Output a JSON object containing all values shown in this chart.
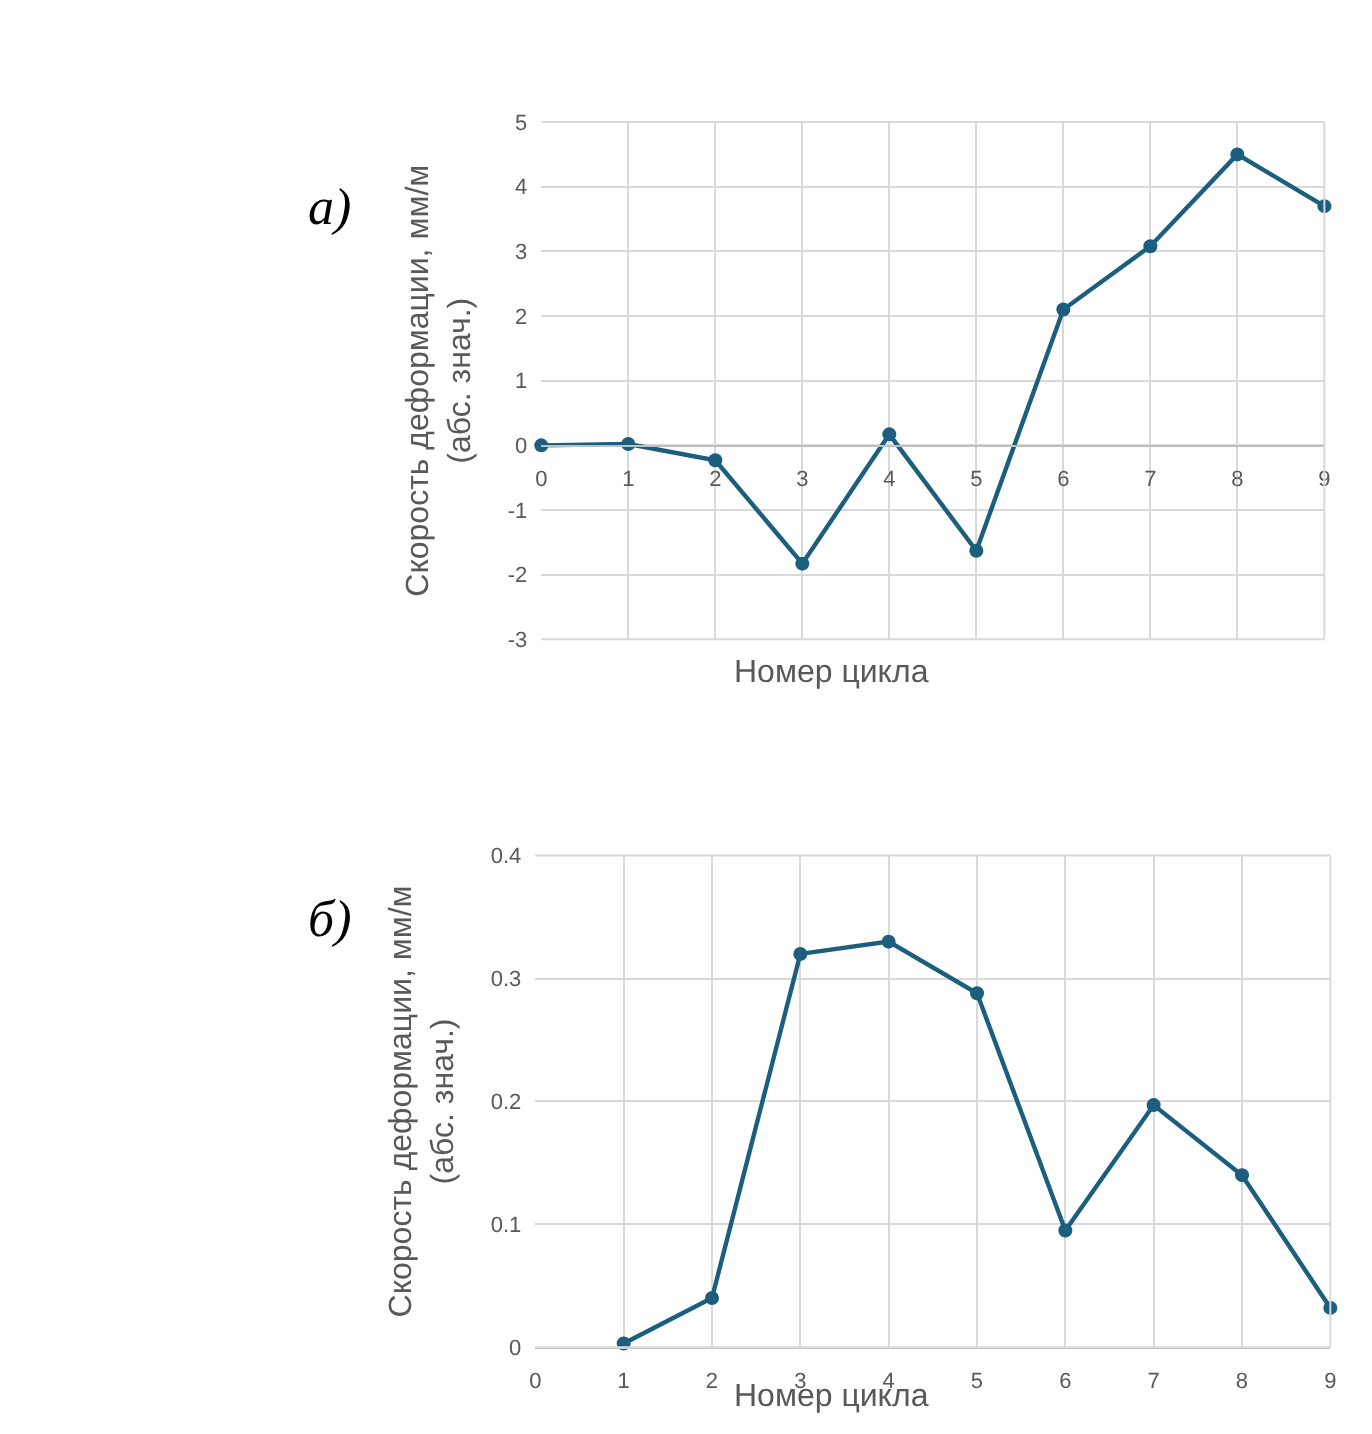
{
  "chart_data": [
    {
      "type": "line",
      "title": "а)",
      "xlabel": "Номер цикла",
      "ylabel": "Скорость деформации, мм/м\n(абс. знач.)",
      "x": [
        0,
        1,
        2,
        3,
        4,
        5,
        6,
        7,
        8,
        9
      ],
      "series": [
        {
          "color": "#1b5e7e",
          "values": [
            0,
            0.02,
            -0.23,
            -1.83,
            0.17,
            -1.63,
            2.1,
            3.08,
            4.5,
            3.7
          ]
        }
      ],
      "xlim": [
        0,
        9
      ],
      "xticks": [
        0,
        1,
        2,
        3,
        4,
        5,
        6,
        7,
        8,
        9
      ],
      "ylim": [
        -3,
        5
      ],
      "yticks": [
        -3,
        -2,
        -1,
        0,
        1,
        2,
        3,
        4,
        5
      ],
      "grid": true,
      "marker": "circle",
      "line_style": "solid"
    },
    {
      "type": "line",
      "title": "б)",
      "xlabel": "Номер цикла",
      "ylabel": "Скорость деформации, мм/м\n(абс. знач.)",
      "x": [
        1,
        2,
        3,
        4,
        5,
        6,
        7,
        8,
        9
      ],
      "series": [
        {
          "color": "#1b5e7e",
          "values": [
            0.003,
            0.04,
            0.32,
            0.33,
            0.288,
            0.095,
            0.197,
            0.14,
            0.032
          ]
        }
      ],
      "xlim": [
        0,
        9
      ],
      "xticks": [
        0,
        1,
        2,
        3,
        4,
        5,
        6,
        7,
        8,
        9
      ],
      "ylim": [
        0,
        0.4
      ],
      "yticks": [
        0,
        0.1,
        0.2,
        0.3,
        0.4
      ],
      "grid": true,
      "marker": "circle",
      "line_style": "solid"
    }
  ]
}
